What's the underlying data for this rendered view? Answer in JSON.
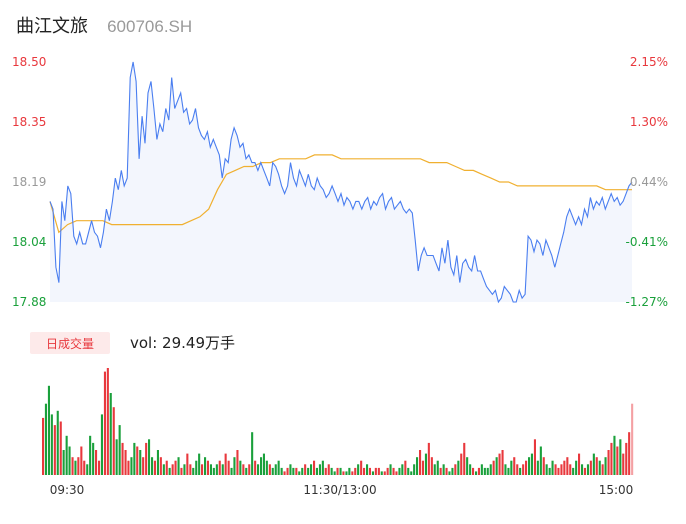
{
  "header": {
    "stock_name": "曲江文旅",
    "stock_code": "600706.SH"
  },
  "volume_panel": {
    "badge_label": "日成交量",
    "volume_text": "vol: 29.49万手"
  },
  "colors": {
    "price_line": "#4a7ef0",
    "avg_line": "#f0b030",
    "area_fill": "#f3f6fd",
    "up": "#e8383d",
    "down": "#1aa03b",
    "axis_up": "#e8383d",
    "axis_down": "#1aa03b",
    "axis_neutral": "#999999"
  },
  "chart_data": [
    {
      "type": "line",
      "title": "",
      "y_left_ticks": [
        "18.50",
        "18.35",
        "18.19",
        "18.04",
        "17.88"
      ],
      "y_right_ticks": [
        "2.15%",
        "1.30%",
        "0.44%",
        "-0.41%",
        "-1.27%"
      ],
      "ylim": [
        17.88,
        18.5
      ],
      "x_ticks": [
        "09:30",
        "11:30/13:00",
        "15:00"
      ],
      "series": [
        {
          "name": "price",
          "values": [
            18.14,
            18.12,
            17.97,
            17.93,
            18.14,
            18.09,
            18.18,
            18.16,
            18.05,
            18.03,
            18.06,
            18.03,
            18.03,
            18.06,
            18.09,
            18.06,
            18.05,
            18.02,
            18.06,
            18.12,
            18.09,
            18.14,
            18.2,
            18.17,
            18.22,
            18.18,
            18.2,
            18.46,
            18.5,
            18.45,
            18.25,
            18.36,
            18.29,
            18.42,
            18.45,
            18.38,
            18.3,
            18.34,
            18.32,
            18.38,
            18.35,
            18.46,
            18.38,
            18.4,
            18.42,
            18.37,
            18.38,
            18.34,
            18.35,
            18.38,
            18.33,
            18.31,
            18.3,
            18.32,
            18.28,
            18.3,
            18.28,
            18.26,
            18.2,
            18.25,
            18.24,
            18.3,
            18.33,
            18.31,
            18.28,
            18.29,
            18.25,
            18.26,
            18.24,
            18.24,
            18.22,
            18.24,
            18.22,
            18.2,
            18.18,
            18.24,
            18.23,
            18.21,
            18.18,
            18.16,
            18.18,
            18.24,
            18.2,
            18.18,
            18.22,
            18.2,
            18.18,
            18.21,
            18.18,
            18.17,
            18.2,
            18.18,
            18.17,
            18.15,
            18.16,
            18.18,
            18.16,
            18.14,
            18.16,
            18.13,
            18.15,
            18.14,
            18.12,
            18.14,
            18.14,
            18.12,
            18.14,
            18.15,
            18.12,
            18.14,
            18.13,
            18.15,
            18.16,
            18.12,
            18.14,
            18.15,
            18.12,
            18.13,
            18.14,
            18.12,
            18.11,
            18.12,
            18.11,
            18.04,
            17.96,
            18.0,
            18.02,
            18.0,
            18.0,
            18.0,
            17.98,
            17.96,
            18.02,
            17.98,
            18.04,
            17.97,
            17.95,
            18.0,
            17.93,
            17.98,
            17.99,
            17.97,
            17.96,
            18.0,
            17.96,
            17.96,
            17.94,
            17.92,
            17.91,
            17.9,
            17.91,
            17.88,
            17.89,
            17.92,
            17.91,
            17.9,
            17.88,
            17.88,
            17.91,
            17.89,
            17.9,
            18.05,
            18.04,
            18.01,
            18.04,
            18.03,
            18.0,
            18.04,
            18.02,
            18.0,
            17.97,
            18.0,
            18.03,
            18.06,
            18.1,
            18.12,
            18.1,
            18.08,
            18.1,
            18.08,
            18.12,
            18.1,
            18.15,
            18.12,
            18.14,
            18.13,
            18.15,
            18.12,
            18.14,
            18.16,
            18.14,
            18.15,
            18.13,
            18.14,
            18.16,
            18.18,
            18.19
          ]
        },
        {
          "name": "average",
          "values": [
            18.14,
            18.06,
            18.08,
            18.09,
            18.09,
            18.09,
            18.09,
            18.08,
            18.08,
            18.08,
            18.08,
            18.08,
            18.08,
            18.08,
            18.08,
            18.08,
            18.09,
            18.1,
            18.12,
            18.17,
            18.21,
            18.22,
            18.23,
            18.23,
            18.24,
            18.24,
            18.25,
            18.25,
            18.25,
            18.25,
            18.26,
            18.26,
            18.26,
            18.25,
            18.25,
            18.25,
            18.25,
            18.25,
            18.25,
            18.25,
            18.25,
            18.25,
            18.25,
            18.24,
            18.24,
            18.24,
            18.23,
            18.22,
            18.22,
            18.21,
            18.2,
            18.19,
            18.19,
            18.18,
            18.18,
            18.18,
            18.18,
            18.18,
            18.18,
            18.18,
            18.18,
            18.18,
            18.18,
            18.17,
            18.17,
            18.17,
            18.17
          ]
        }
      ]
    },
    {
      "type": "bar",
      "title": "日成交量",
      "series": [
        {
          "name": "volume",
          "values": [
            32,
            40,
            50,
            34,
            28,
            36,
            30,
            14,
            22,
            16,
            10,
            8,
            10,
            16,
            8,
            6,
            22,
            18,
            14,
            8,
            34,
            58,
            60,
            46,
            38,
            20,
            28,
            18,
            14,
            8,
            10,
            18,
            16,
            14,
            10,
            18,
            20,
            10,
            8,
            14,
            10,
            6,
            8,
            4,
            6,
            8,
            10,
            4,
            6,
            12,
            6,
            4,
            8,
            12,
            6,
            10,
            8,
            6,
            4,
            6,
            8,
            6,
            12,
            8,
            4,
            10,
            14,
            8,
            6,
            4,
            6,
            24,
            8,
            6,
            10,
            12,
            8,
            6,
            4,
            6,
            8,
            4,
            2,
            4,
            6,
            4,
            4,
            2,
            4,
            6,
            4,
            6,
            8,
            4,
            6,
            8,
            4,
            6,
            4,
            2,
            4,
            4,
            2,
            2,
            4,
            2,
            4,
            6,
            8,
            4,
            6,
            4,
            2,
            4,
            4,
            2,
            2,
            4,
            6,
            4,
            2,
            4,
            6,
            8,
            4,
            2,
            6,
            10,
            14,
            8,
            12,
            18,
            10,
            6,
            8,
            4,
            6,
            4,
            2,
            4,
            6,
            8,
            12,
            18,
            10,
            6,
            4,
            2,
            4,
            6,
            4,
            4,
            6,
            8,
            10,
            12,
            14,
            6,
            4,
            8,
            10,
            6,
            4,
            6,
            8,
            10,
            12,
            20,
            8,
            16,
            10,
            6,
            4,
            8,
            6,
            4,
            6,
            8,
            10,
            6,
            4,
            8,
            12,
            6,
            4,
            6,
            8,
            12,
            10,
            8,
            6,
            10,
            14,
            18,
            22,
            16,
            20,
            12,
            18,
            24,
            40
          ]
        }
      ]
    }
  ]
}
